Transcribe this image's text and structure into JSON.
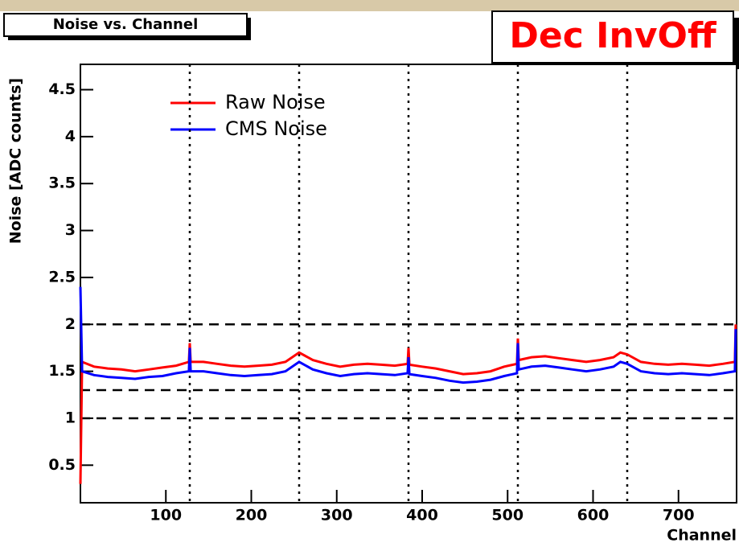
{
  "chart_data": {
    "type": "line",
    "title": "Noise vs. Channel",
    "tag": "Dec InvOff",
    "x_label": "Channel",
    "y_label": "Noise [ADC counts]",
    "x": [
      0,
      2,
      16,
      32,
      48,
      64,
      80,
      96,
      112,
      127,
      128,
      129,
      144,
      160,
      176,
      192,
      208,
      224,
      240,
      256,
      272,
      288,
      304,
      320,
      336,
      352,
      368,
      383,
      384,
      385,
      400,
      416,
      432,
      448,
      464,
      480,
      496,
      511,
      512,
      513,
      528,
      544,
      560,
      576,
      592,
      608,
      624,
      632,
      640,
      656,
      672,
      688,
      704,
      720,
      736,
      752,
      766,
      767
    ],
    "series": [
      {
        "name": "Raw Noise",
        "color": "#ff0000",
        "values": [
          0.3,
          1.6,
          1.55,
          1.53,
          1.52,
          1.5,
          1.52,
          1.54,
          1.56,
          1.6,
          1.8,
          1.6,
          1.6,
          1.58,
          1.56,
          1.55,
          1.56,
          1.57,
          1.6,
          1.7,
          1.62,
          1.58,
          1.55,
          1.57,
          1.58,
          1.57,
          1.56,
          1.58,
          1.75,
          1.57,
          1.55,
          1.53,
          1.5,
          1.47,
          1.48,
          1.5,
          1.55,
          1.58,
          1.85,
          1.62,
          1.65,
          1.66,
          1.64,
          1.62,
          1.6,
          1.62,
          1.65,
          1.7,
          1.68,
          1.6,
          1.58,
          1.57,
          1.58,
          1.57,
          1.56,
          1.58,
          1.6,
          2.0
        ]
      },
      {
        "name": "CMS Noise",
        "color": "#0000ff",
        "values": [
          2.4,
          1.5,
          1.46,
          1.44,
          1.43,
          1.42,
          1.44,
          1.45,
          1.48,
          1.5,
          1.75,
          1.5,
          1.5,
          1.48,
          1.46,
          1.45,
          1.46,
          1.47,
          1.5,
          1.6,
          1.52,
          1.48,
          1.45,
          1.47,
          1.48,
          1.47,
          1.46,
          1.48,
          1.65,
          1.47,
          1.45,
          1.43,
          1.4,
          1.38,
          1.39,
          1.41,
          1.45,
          1.48,
          1.8,
          1.52,
          1.55,
          1.56,
          1.54,
          1.52,
          1.5,
          1.52,
          1.55,
          1.6,
          1.58,
          1.5,
          1.48,
          1.47,
          1.48,
          1.47,
          1.46,
          1.48,
          1.5,
          1.95
        ]
      }
    ],
    "xlim": [
      0,
      768
    ],
    "ylim": [
      0.1,
      4.77
    ],
    "xticks": [
      100,
      200,
      300,
      400,
      500,
      600,
      700
    ],
    "yticks": [
      0.5,
      1,
      1.5,
      2,
      2.5,
      3,
      3.5,
      4,
      4.5
    ],
    "hlines": [
      2,
      1.3,
      1
    ],
    "vlines": [
      128,
      256,
      384,
      512,
      640
    ],
    "legend": "top-left"
  }
}
